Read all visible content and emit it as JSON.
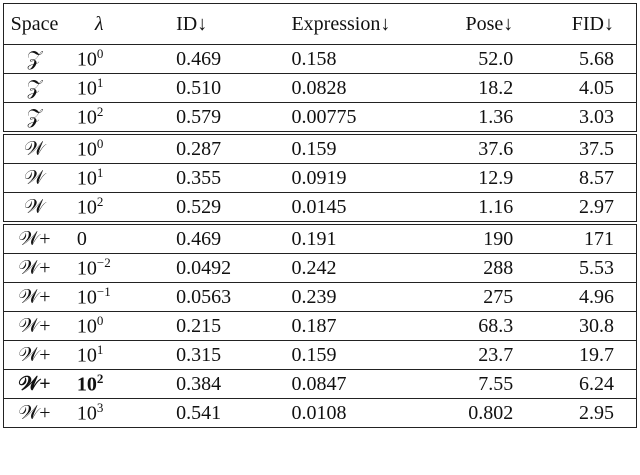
{
  "table": {
    "header": [
      "Space",
      "λ",
      "ID↓",
      "Expression↓",
      "Pose↓",
      "FID↓"
    ],
    "groups": [
      {
        "rows": [
          {
            "space": "𝒵",
            "lambda": {
              "base": "10",
              "exp": "0"
            },
            "cells": [
              "0.469",
              "0.158",
              "52.0",
              "5.68"
            ]
          },
          {
            "space": "𝒵",
            "lambda": {
              "base": "10",
              "exp": "1"
            },
            "cells": [
              "0.510",
              "0.0828",
              "18.2",
              "4.05"
            ]
          },
          {
            "space": "𝒵",
            "lambda": {
              "base": "10",
              "exp": "2"
            },
            "cells": [
              "0.579",
              "0.00775",
              "1.36",
              "3.03"
            ]
          }
        ]
      },
      {
        "rows": [
          {
            "space": "𝒲",
            "lambda": {
              "base": "10",
              "exp": "0"
            },
            "cells": [
              "0.287",
              "0.159",
              "37.6",
              "37.5"
            ]
          },
          {
            "space": "𝒲",
            "lambda": {
              "base": "10",
              "exp": "1"
            },
            "cells": [
              "0.355",
              "0.0919",
              "12.9",
              "8.57"
            ]
          },
          {
            "space": "𝒲",
            "lambda": {
              "base": "10",
              "exp": "2"
            },
            "cells": [
              "0.529",
              "0.0145",
              "1.16",
              "2.97"
            ]
          }
        ]
      },
      {
        "rows": [
          {
            "space": "𝒲+",
            "lambda": {
              "base": "0"
            },
            "cells": [
              "0.469",
              "0.191",
              "190",
              "171"
            ]
          },
          {
            "space": "𝒲+",
            "lambda": {
              "base": "10",
              "exp": "−2"
            },
            "cells": [
              "0.0492",
              "0.242",
              "288",
              "5.53"
            ]
          },
          {
            "space": "𝒲+",
            "lambda": {
              "base": "10",
              "exp": "−1"
            },
            "cells": [
              "0.0563",
              "0.239",
              "275",
              "4.96"
            ]
          },
          {
            "space": "𝒲+",
            "lambda": {
              "base": "10",
              "exp": "0"
            },
            "cells": [
              "0.215",
              "0.187",
              "68.3",
              "30.8"
            ]
          },
          {
            "space": "𝒲+",
            "lambda": {
              "base": "10",
              "exp": "1"
            },
            "cells": [
              "0.315",
              "0.159",
              "23.7",
              "19.7"
            ]
          },
          {
            "space": "𝒲+",
            "lambda": {
              "base": "10",
              "exp": "2"
            },
            "cells": [
              "0.384",
              "0.0847",
              "7.55",
              "6.24"
            ],
            "highlight": true
          },
          {
            "space": "𝒲+",
            "lambda": {
              "base": "10",
              "exp": "3"
            },
            "cells": [
              "0.541",
              "0.0108",
              "0.802",
              "2.95"
            ]
          }
        ]
      }
    ]
  }
}
